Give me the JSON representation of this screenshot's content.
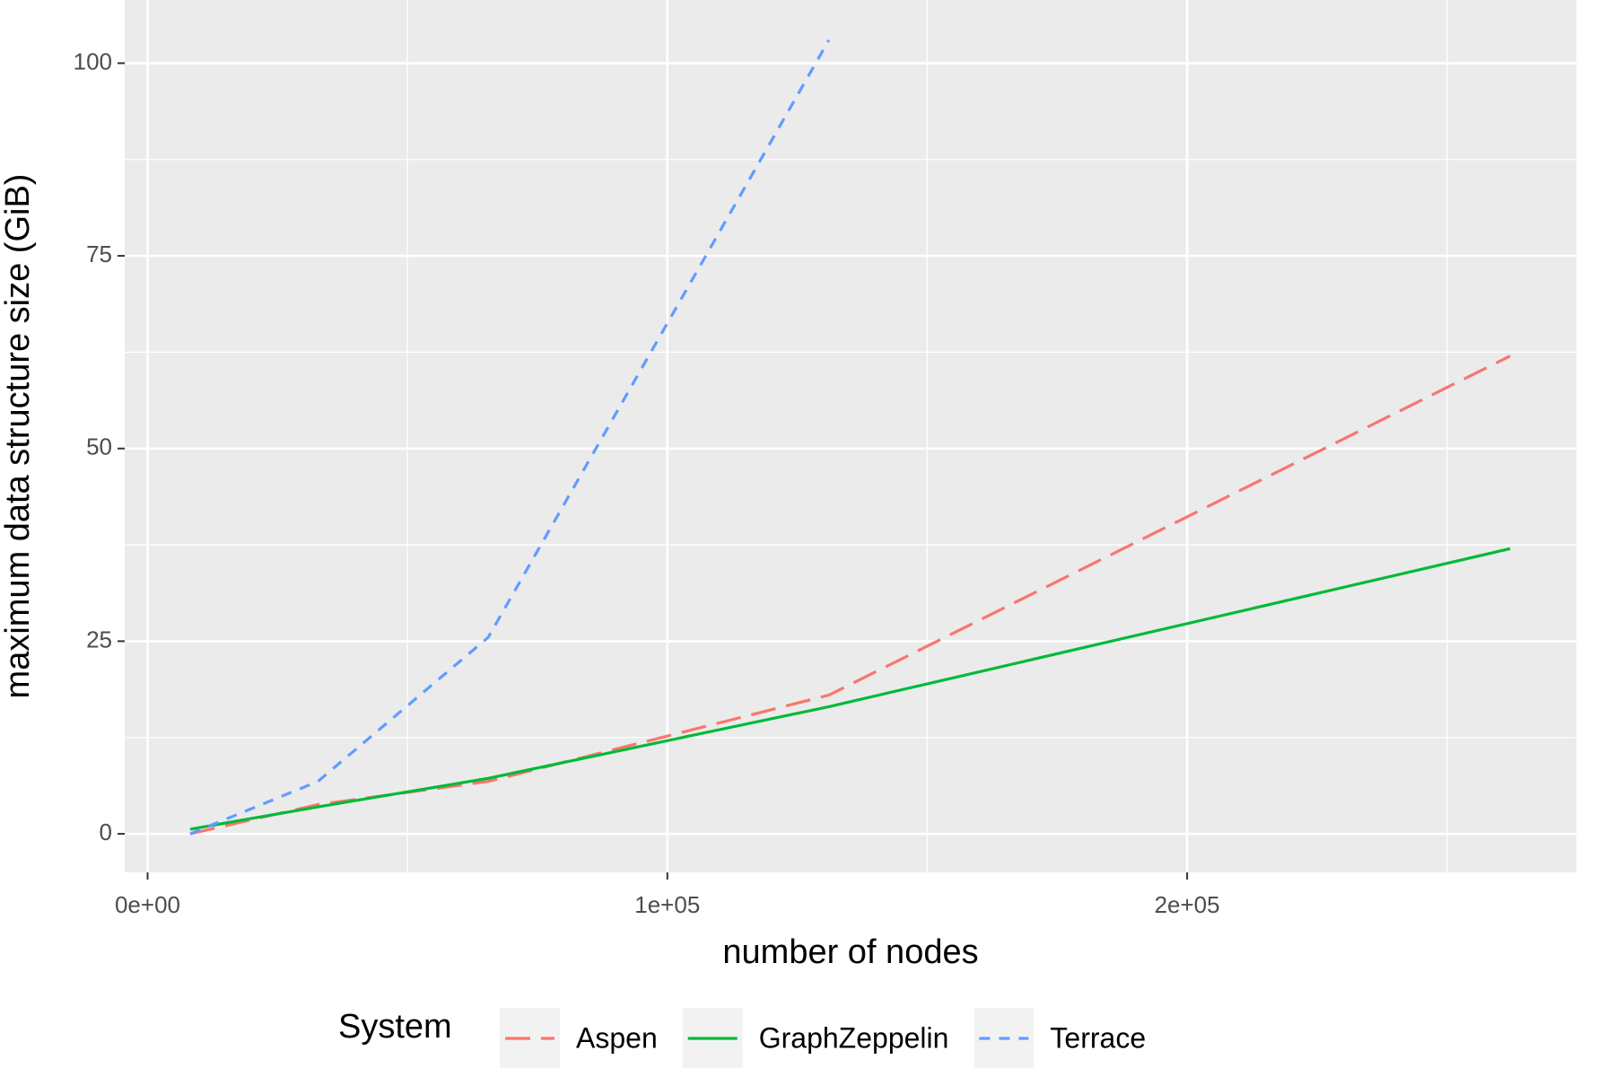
{
  "chart_data": {
    "type": "line",
    "xlabel": "number of nodes",
    "ylabel": "maximum data structure size (GiB)",
    "legend_title": "System",
    "legend": "bottom",
    "grid": true,
    "x": [
      8192,
      32768,
      65536,
      131072,
      262144
    ],
    "series": [
      {
        "name": "Aspen",
        "color": "#f8766d",
        "linestyle": "longdash",
        "values": [
          0,
          3.8,
          6.8,
          18,
          62
        ]
      },
      {
        "name": "GraphZeppelin",
        "color": "#00ba38",
        "linestyle": "solid",
        "values": [
          0.6,
          3.5,
          7.2,
          16.5,
          37
        ]
      },
      {
        "name": "Terrace",
        "color": "#619cff",
        "linestyle": "dashed",
        "values": [
          0,
          6.8,
          25.5,
          103,
          null
        ]
      }
    ],
    "xlim": [
      -4400,
      274900
    ],
    "xticks": [
      {
        "value": 0,
        "label": "0e+00"
      },
      {
        "value": 100000,
        "label": "1e+05"
      },
      {
        "value": 200000,
        "label": "2e+05"
      }
    ],
    "ylim": [
      -5,
      108.2
    ],
    "yticks": [
      0,
      25,
      50,
      75,
      100
    ]
  }
}
